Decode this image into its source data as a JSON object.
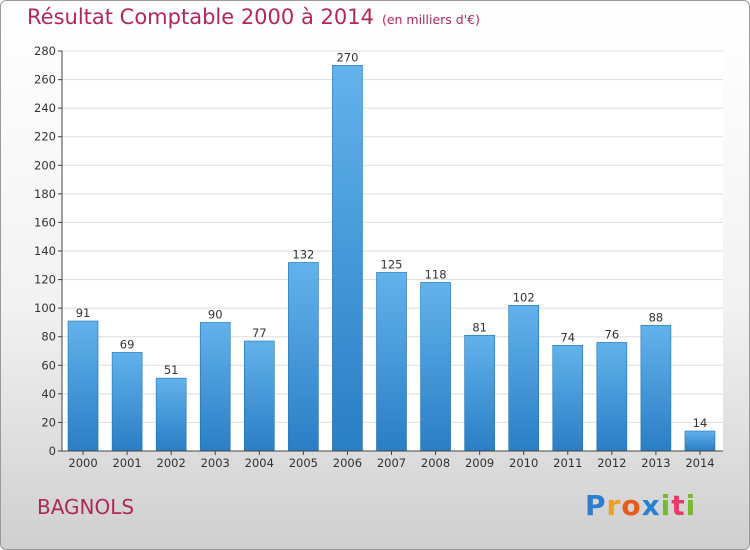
{
  "header": {
    "title": "Résultat Comptable 2000 à 2014",
    "subtitle": "(en milliers d'€)"
  },
  "town": "BAGNOLS",
  "logo": {
    "letters": [
      "P",
      "r",
      "o",
      "x",
      "i",
      "t",
      "i"
    ],
    "colors": [
      "#2a7fcf",
      "#f0a020",
      "#e85a1a",
      "#2a7fcf",
      "#7ab82e",
      "#e83a6a",
      "#7ab82e"
    ]
  },
  "colors": {
    "bar_top": "#62b2ec",
    "bar_bottom": "#2a7ec4",
    "grid": "#dedede",
    "axis": "#444444",
    "text": "#333333",
    "title": "#b0285a"
  },
  "chart_data": {
    "type": "bar",
    "title": "Résultat Comptable 2000 à 2014",
    "xlabel": "",
    "ylabel": "",
    "categories": [
      "2000",
      "2001",
      "2002",
      "2003",
      "2004",
      "2005",
      "2006",
      "2007",
      "2008",
      "2009",
      "2010",
      "2011",
      "2012",
      "2013",
      "2014"
    ],
    "values": [
      91,
      69,
      51,
      90,
      77,
      132,
      270,
      125,
      118,
      81,
      102,
      74,
      76,
      88,
      14
    ],
    "ylim": [
      0,
      280
    ],
    "yticks": [
      0,
      20,
      40,
      60,
      80,
      100,
      120,
      140,
      160,
      180,
      200,
      220,
      240,
      260,
      280
    ],
    "grid": true
  }
}
